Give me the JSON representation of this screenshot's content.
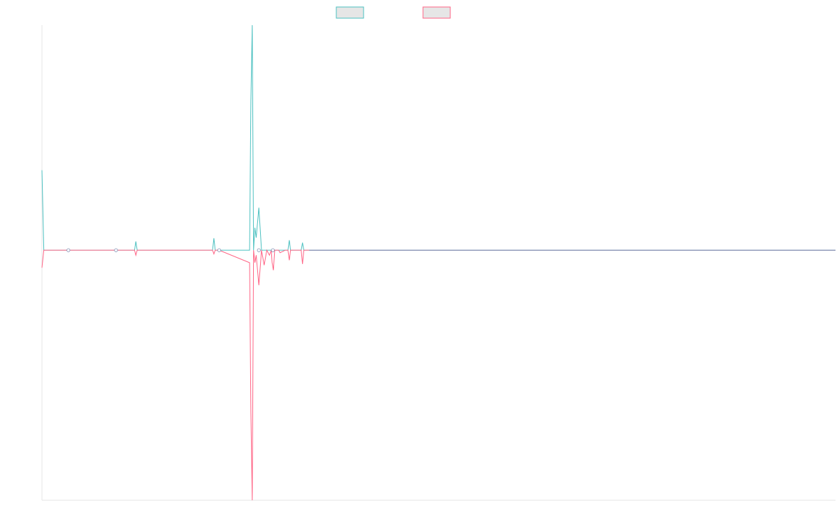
{
  "chart_data": {
    "type": "line",
    "title": "",
    "xlabel": "",
    "ylabel": "",
    "grid": false,
    "legend_position": "top-center",
    "xlim": [
      0,
      300
    ],
    "ylim": [
      -1.0,
      0.9
    ],
    "x": [
      0,
      0.7,
      1,
      10,
      28,
      35,
      35.5,
      36,
      36.5,
      37,
      64.5,
      65,
      65.5,
      66,
      66.5,
      67,
      78.5,
      79,
      79.5,
      80,
      80.5,
      81,
      82,
      83,
      84,
      85,
      86,
      86.7,
      87,
      87.5,
      88,
      89.5,
      90,
      92,
      93,
      93.5,
      94,
      94.5,
      95,
      97.5,
      98,
      98.5,
      99,
      99.5,
      100,
      300
    ],
    "series": [
      {
        "values": [
          0.32,
          0.0,
          0.0,
          0.0,
          0.0,
          0.0,
          0.035,
          0.0,
          0.0,
          0.0,
          0.0,
          0.048,
          0.0,
          0.0,
          0.0,
          0.0,
          0.0,
          0.6,
          0.9,
          0.0,
          0.09,
          0.05,
          0.17,
          0.0,
          0.0,
          0.0,
          0.0,
          0.0,
          0.0,
          0.0,
          0.0,
          0.0,
          0.0,
          0.0,
          0.0,
          0.04,
          0.0,
          0.0,
          0.0,
          0.0,
          0.0,
          0.03,
          0.0,
          0.0,
          0.0,
          0.0
        ],
        "color": "#4bc0c0"
      },
      {
        "values": [
          -0.07,
          0.0,
          0.0,
          0.0,
          0.0,
          0.0,
          -0.02,
          0.0,
          0.0,
          0.0,
          0.0,
          -0.015,
          0.0,
          0.0,
          0.0,
          0.0,
          -0.05,
          -0.65,
          -1.0,
          0.0,
          -0.05,
          -0.02,
          -0.14,
          0.0,
          -0.06,
          0.0,
          -0.02,
          0.0,
          -0.05,
          -0.08,
          0.0,
          0.0,
          -0.01,
          0.0,
          0.0,
          -0.04,
          0.0,
          0.0,
          0.0,
          0.0,
          0.0,
          -0.055,
          0.0,
          0.0,
          0.0,
          0.0
        ],
        "color": "#ff6384"
      }
    ],
    "baseline_color": "#7e8fb3",
    "axis_color": "#e6e6e6",
    "legend_fill": "#e6e6e6"
  }
}
